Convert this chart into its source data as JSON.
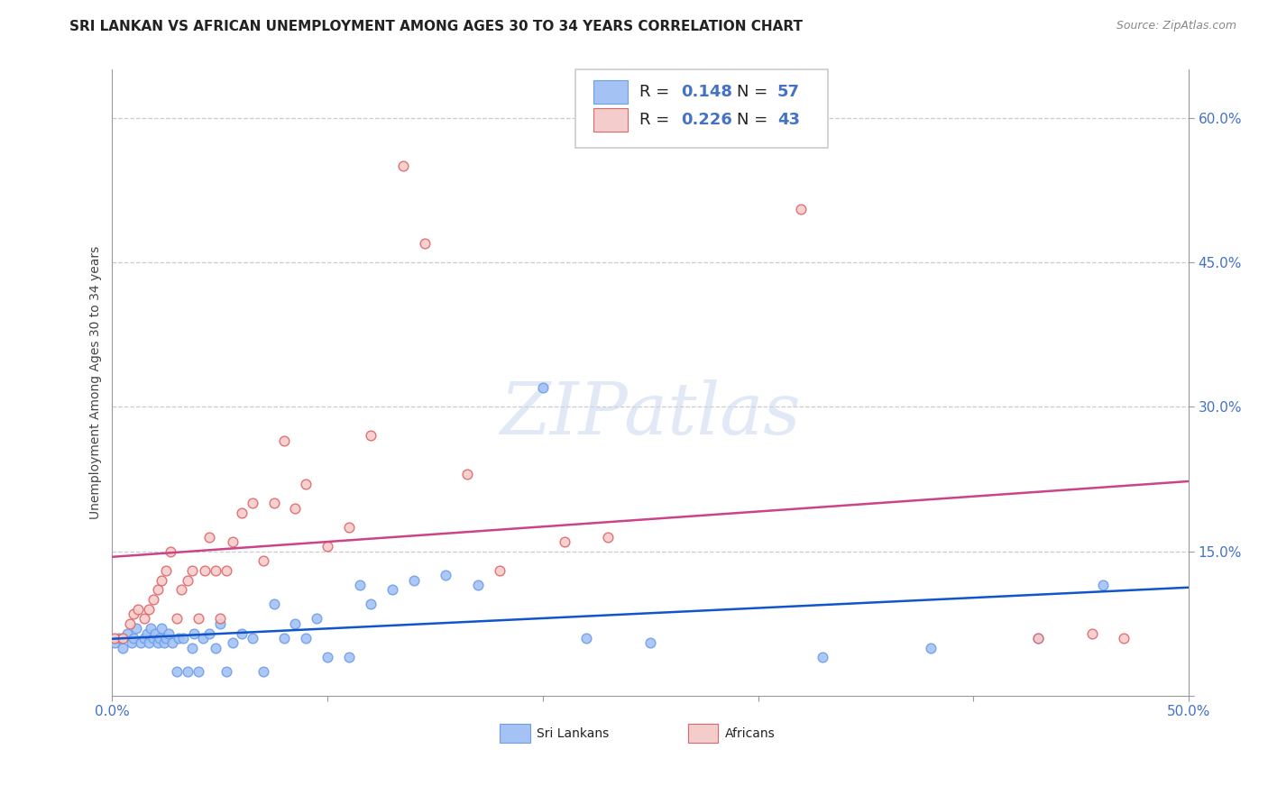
{
  "title": "SRI LANKAN VS AFRICAN UNEMPLOYMENT AMONG AGES 30 TO 34 YEARS CORRELATION CHART",
  "source": "Source: ZipAtlas.com",
  "ylabel": "Unemployment Among Ages 30 to 34 years",
  "xlim": [
    0.0,
    0.5
  ],
  "ylim": [
    0.0,
    0.65
  ],
  "xticks": [
    0.0,
    0.1,
    0.2,
    0.3,
    0.4,
    0.5
  ],
  "xticklabels": [
    "0.0%",
    "",
    "",
    "",
    "",
    "50.0%"
  ],
  "yticks": [
    0.0,
    0.15,
    0.3,
    0.45,
    0.6
  ],
  "yticklabels": [
    "",
    "15.0%",
    "30.0%",
    "45.0%",
    "60.0%"
  ],
  "sri_lankan_color": "#a4c2f4",
  "african_color": "#f4cccc",
  "sri_lankan_edge_color": "#6d9eeb",
  "african_edge_color": "#e06666",
  "sri_lankan_line_color": "#1155cc",
  "african_line_color": "#cc4488",
  "background_color": "#ffffff",
  "R_sri": 0.148,
  "N_sri": 57,
  "R_afr": 0.226,
  "N_afr": 43,
  "sri_lankan_x": [
    0.001,
    0.003,
    0.005,
    0.007,
    0.009,
    0.01,
    0.011,
    0.013,
    0.015,
    0.016,
    0.017,
    0.018,
    0.019,
    0.02,
    0.021,
    0.022,
    0.023,
    0.024,
    0.025,
    0.026,
    0.028,
    0.03,
    0.031,
    0.033,
    0.035,
    0.037,
    0.038,
    0.04,
    0.042,
    0.045,
    0.048,
    0.05,
    0.053,
    0.056,
    0.06,
    0.065,
    0.07,
    0.075,
    0.08,
    0.085,
    0.09,
    0.095,
    0.1,
    0.11,
    0.115,
    0.12,
    0.13,
    0.14,
    0.155,
    0.17,
    0.2,
    0.22,
    0.25,
    0.33,
    0.38,
    0.43,
    0.46
  ],
  "sri_lankan_y": [
    0.055,
    0.06,
    0.05,
    0.065,
    0.055,
    0.06,
    0.07,
    0.055,
    0.06,
    0.065,
    0.055,
    0.07,
    0.06,
    0.065,
    0.055,
    0.06,
    0.07,
    0.055,
    0.06,
    0.065,
    0.055,
    0.025,
    0.06,
    0.06,
    0.025,
    0.05,
    0.065,
    0.025,
    0.06,
    0.065,
    0.05,
    0.075,
    0.025,
    0.055,
    0.065,
    0.06,
    0.025,
    0.095,
    0.06,
    0.075,
    0.06,
    0.08,
    0.04,
    0.04,
    0.115,
    0.095,
    0.11,
    0.12,
    0.125,
    0.115,
    0.32,
    0.06,
    0.055,
    0.04,
    0.05,
    0.06,
    0.115
  ],
  "african_x": [
    0.001,
    0.005,
    0.008,
    0.01,
    0.012,
    0.015,
    0.017,
    0.019,
    0.021,
    0.023,
    0.025,
    0.027,
    0.03,
    0.032,
    0.035,
    0.037,
    0.04,
    0.043,
    0.045,
    0.048,
    0.05,
    0.053,
    0.056,
    0.06,
    0.065,
    0.07,
    0.075,
    0.08,
    0.085,
    0.09,
    0.1,
    0.11,
    0.12,
    0.135,
    0.145,
    0.165,
    0.18,
    0.21,
    0.23,
    0.32,
    0.43,
    0.455,
    0.47
  ],
  "african_y": [
    0.06,
    0.06,
    0.075,
    0.085,
    0.09,
    0.08,
    0.09,
    0.1,
    0.11,
    0.12,
    0.13,
    0.15,
    0.08,
    0.11,
    0.12,
    0.13,
    0.08,
    0.13,
    0.165,
    0.13,
    0.08,
    0.13,
    0.16,
    0.19,
    0.2,
    0.14,
    0.2,
    0.265,
    0.195,
    0.22,
    0.155,
    0.175,
    0.27,
    0.55,
    0.47,
    0.23,
    0.13,
    0.16,
    0.165,
    0.505,
    0.06,
    0.065,
    0.06
  ],
  "watermark": "ZIPatlas",
  "title_fontsize": 11,
  "legend_fontsize": 13,
  "tick_color": "#4472c4"
}
